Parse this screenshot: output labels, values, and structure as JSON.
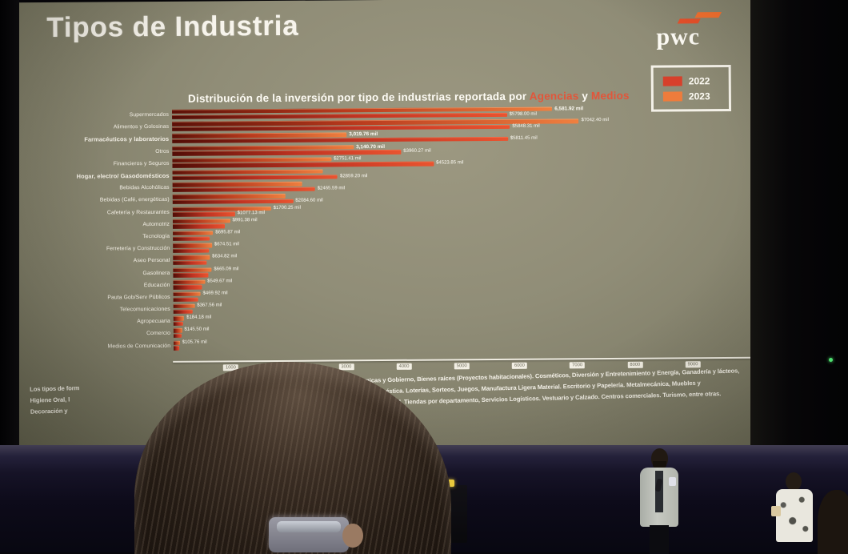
{
  "slide": {
    "title": "Tipos de Industria",
    "logo_text": "pwc",
    "legend": {
      "items": [
        {
          "label": "2022",
          "color": "#d7402b"
        },
        {
          "label": "2023",
          "color": "#ee7c3c"
        }
      ]
    },
    "chart_title": {
      "prefix": "Distribución de la inversión  por tipo de industrias reportada por ",
      "highlight1": "Agencias",
      "connector": " y ",
      "highlight2": "Medios"
    },
    "footnote": {
      "lines": [
        {
          "left": "Los tipos de form",
          "right": "micas y Gobierno, Bienes raíces (Proyectos habitacionales). Cosméticos, Diversión y Entretenimiento y Energía, Ganadería y lácteos,"
        },
        {
          "left": "Higiene Oral, l",
          "right": "ne Doméstica. Loterías, Sorteos, Juegos, Manufactura Ligera Material. Escritorio y Papelería. Metalmecánica, Muebles y"
        },
        {
          "left": "Decoración y",
          "right": "ctor Forestal, Tiendas por departamento, Servicios Logísticos. Vestuario y  Calzado. Centros comerciales. Turismo, entre otras."
        }
      ]
    }
  },
  "chart_data": {
    "type": "bar",
    "orientation": "horizontal",
    "title": "Distribución de la inversión por tipo de industrias reportada por Agencias y Medios",
    "unit": "mil",
    "xlim": [
      0,
      10000
    ],
    "x_ticks": [
      1000,
      2000,
      3000,
      4000,
      5000,
      6000,
      7000,
      8000,
      9000
    ],
    "legend_position": "top-right",
    "grid": false,
    "categories": [
      "Supermercados",
      "Alimentos y Golosinas",
      "Farmacéuticos y laboratorios",
      "Otros",
      "Financieros y Seguros",
      "Hogar, electro/ Gasodomésticos",
      "Bebidas Alcohólicas",
      "Bebidas (Café, energéticas)",
      "Cafetería y Restaurantes",
      "Automotriz",
      "Tecnología",
      "Ferretería y Construcción",
      "Aseo Personal",
      "Gasolinera",
      "Educación",
      "Pauta Gob/Serv Públicos",
      "Telecomunicaciones",
      "Agropecuaria",
      "Comercio",
      "Medios de Comunicación"
    ],
    "bold_category_indexes": [
      2,
      5
    ],
    "series": [
      {
        "name": "2023",
        "color": "#ee7c3c",
        "values": [
          6581.92,
          7042.4,
          3019.76,
          3140.7,
          2751.41,
          2600.0,
          2250.0,
          1950.0,
          1700.25,
          991.38,
          695.87,
          674.51,
          634.82,
          665.09,
          549.67,
          469.92,
          367.56,
          184.18,
          145.5,
          105.76
        ],
        "labels": [
          "6,581.92 mil",
          "$7042.40 mil",
          "3,019.76 mil",
          "3,140.70 mil",
          "$2751.41 mil",
          "",
          "",
          "",
          "$1700.25 mil",
          "$991.38 mil",
          "$695.87 mil",
          "$674.51 mil",
          "$634.82 mil",
          "$665.09 mil",
          "$549.67 mil",
          "$469.92 mil",
          "$367.56 mil",
          "$184.18 mil",
          "$145.50 mil",
          "$105.76 mil"
        ],
        "bold_label_indexes": [
          0,
          2,
          3
        ]
      },
      {
        "name": "2022",
        "color": "#d7402b",
        "values": [
          5798.0,
          5848.31,
          5811.45,
          3960.27,
          4523.85,
          2859.2,
          2465.59,
          2084.6,
          1077.13,
          900.0,
          640.0,
          620.0,
          580.0,
          610.0,
          505.0,
          430.0,
          335.0,
          168.0,
          133.0,
          96.0
        ],
        "labels": [
          "$5798.00 mil",
          "$5848.31 mil",
          "$5811.45 mil",
          "$3960.27 mil",
          "$4523.85 mil",
          "$2859.20 mil",
          "$2465.59 mil",
          "$2084.60 mil",
          "$1077.13 mil",
          "",
          "",
          "",
          "",
          "",
          "",
          "",
          "",
          "",
          "",
          ""
        ],
        "bold_label_indexes": []
      }
    ]
  }
}
